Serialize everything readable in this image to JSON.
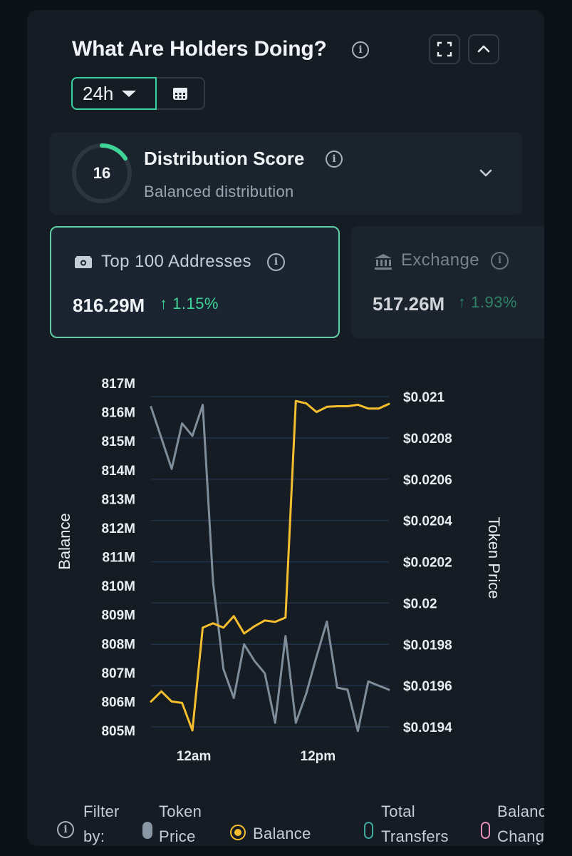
{
  "widget": {
    "title": "What Are Holders Doing?",
    "time_range": "24h"
  },
  "distribution": {
    "score": "16",
    "score_fraction": 0.16,
    "title": "Distribution Score",
    "subtitle": "Balanced distribution"
  },
  "stats": [
    {
      "label": "Top 100 Addresses",
      "value": "816.29M",
      "change": "↑ 1.15%"
    },
    {
      "label": "Exchange",
      "value": "517.26M",
      "change": "↑ 1.93%"
    }
  ],
  "filter": {
    "label_line1": "Filter",
    "label_line2": "by:",
    "items": [
      {
        "line1": "Token",
        "line2": "Price",
        "color": "#8a97a4"
      },
      {
        "line1": "Balance",
        "line2": "",
        "color": "#f5be2e"
      },
      {
        "line1": "Total",
        "line2": "Transfers",
        "color": "#3fa89c"
      },
      {
        "line1": "Balanc",
        "line2": "Chang",
        "color": "#e58fb8"
      }
    ]
  },
  "colors": {
    "accent": "#38d39f",
    "balance": "#f5be2e",
    "price": "#7f8d9a",
    "up": "#3ed596"
  },
  "chart_data": {
    "type": "line",
    "x_ticks": [
      "12am",
      "12pm"
    ],
    "ylabel": "Balance",
    "ylabel_right": "Token Price",
    "y_ticks": [
      "817M",
      "816M",
      "815M",
      "814M",
      "813M",
      "812M",
      "811M",
      "810M",
      "809M",
      "808M",
      "807M",
      "806M",
      "805M"
    ],
    "y_tick_values": [
      817,
      816,
      815,
      814,
      813,
      812,
      811,
      810,
      809,
      808,
      807,
      806,
      805
    ],
    "y2_ticks": [
      "$0.021",
      "$0.0208",
      "$0.0206",
      "$0.0204",
      "$0.0202",
      "$0.02",
      "$0.0198",
      "$0.0196",
      "$0.0194"
    ],
    "y2_tick_values": [
      0.021,
      0.0208,
      0.0206,
      0.0204,
      0.0202,
      0.02,
      0.0198,
      0.0196,
      0.0194
    ],
    "ylim": [
      805,
      817
    ],
    "y2lim": [
      0.0194,
      0.021
    ],
    "grid": true,
    "series": [
      {
        "name": "Balance",
        "axis": "left",
        "color": "#f5be2e",
        "values": [
          806.0,
          806.35,
          806.0,
          805.95,
          805.0,
          808.55,
          808.7,
          808.55,
          808.95,
          808.35,
          808.6,
          808.8,
          808.75,
          808.9,
          816.38,
          816.3,
          816.0,
          816.18,
          816.2,
          816.2,
          816.25,
          816.12,
          816.12,
          816.28
        ]
      },
      {
        "name": "Token Price",
        "axis": "right",
        "color": "#7f8d9a",
        "values": [
          0.02095,
          0.0208,
          0.02065,
          0.02087,
          0.02081,
          0.02096,
          0.0201,
          0.01968,
          0.01954,
          0.0198,
          0.01972,
          0.01966,
          0.01942,
          0.01984,
          0.01942,
          0.01956,
          0.01974,
          0.01991,
          0.01959,
          0.01958,
          0.01938,
          0.01962,
          0.0196,
          0.01958
        ]
      }
    ]
  }
}
